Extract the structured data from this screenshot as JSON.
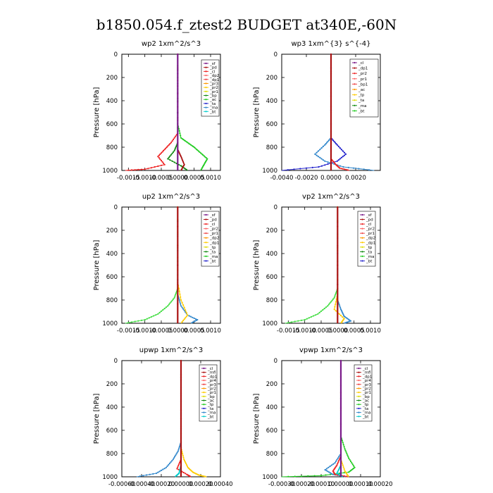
{
  "figure_title": "b1850.054.f_ztest2  BUDGET at340E,-60N",
  "chart_data": [
    {
      "type": "line",
      "title": "wp2   1xm^2/s^3",
      "ylabel": "Pressure [hPa]",
      "xlim": [
        -0.0017,
        0.0013
      ],
      "ylim": [
        1000,
        0
      ],
      "xticks": [
        "-0.0015",
        "-0.0010",
        "-0.0005",
        "0.0000",
        "0.0005",
        "0.0010"
      ],
      "xtick_values": [
        -0.0015,
        -0.001,
        -0.0005,
        0,
        0.0005,
        0.001
      ],
      "yticks": [
        "0",
        "200",
        "400",
        "600",
        "800",
        "1000"
      ],
      "legend": [
        "_sf",
        "_pd",
        "_cl",
        "_dp2",
        "_dp1",
        "_pr3",
        "_pr2",
        "_pr1",
        "_bp",
        "_ac",
        "_ta",
        "_ma",
        "_bt"
      ],
      "series": [
        {
          "name": "_ac",
          "color": "#22cc22",
          "x": [
            0,
            0,
            0.0001,
            0.0003,
            0.0005,
            0.0007,
            0.0009,
            0.0008,
            0.0007
          ],
          "y": [
            0,
            600,
            720,
            760,
            800,
            850,
            900,
            950,
            1000
          ]
        },
        {
          "name": "_dp1",
          "color": "#ee2222",
          "x": [
            0,
            0,
            -0.0002,
            -0.0004,
            -0.0006,
            -0.0004,
            -0.001,
            -0.0016
          ],
          "y": [
            0,
            680,
            760,
            820,
            880,
            950,
            990,
            1000
          ]
        },
        {
          "name": "_bp",
          "color": "#118811",
          "x": [
            0,
            0,
            -0.0001,
            -0.0003,
            0.0001,
            0.0003
          ],
          "y": [
            0,
            760,
            830,
            900,
            960,
            1000
          ]
        },
        {
          "name": "_dp2",
          "color": "#aa1111",
          "x": [
            0,
            0,
            0.0001,
            0.0002,
            0.0001
          ],
          "y": [
            0,
            820,
            880,
            950,
            1000
          ]
        },
        {
          "name": "_pd",
          "color": "#7a1a8a",
          "x": [
            0,
            0
          ],
          "y": [
            0,
            1000
          ]
        }
      ]
    },
    {
      "type": "line",
      "title": "wp3   1xm^{3} s^{-4}",
      "ylabel": "Pressure [hPa]",
      "xlim": [
        -0.004,
        0.004
      ],
      "ylim": [
        1000,
        0
      ],
      "xticks": [
        "-0.0040",
        "-0.0020",
        "0.0000",
        "0.0020"
      ],
      "xtick_values": [
        -0.004,
        -0.002,
        0,
        0.002
      ],
      "yticks": [
        "0",
        "200",
        "400",
        "600",
        "800",
        "1000"
      ],
      "legend": [
        "_cl",
        "_dp1",
        "_pr2",
        "_pr1",
        "_bp1",
        "_ac",
        "_tp",
        "_ta",
        "_ma",
        "_bt"
      ],
      "series": [
        {
          "name": "_tp",
          "color": "#2222cc",
          "x": [
            0,
            0,
            0.0005,
            0.0012,
            0.0005,
            -0.001,
            -0.004
          ],
          "y": [
            0,
            720,
            780,
            860,
            920,
            970,
            1000
          ]
        },
        {
          "name": "_ta",
          "color": "#3388cc",
          "x": [
            0,
            0,
            -0.0005,
            -0.0013,
            -0.0005,
            0.001,
            0.0035
          ],
          "y": [
            0,
            720,
            780,
            860,
            920,
            970,
            1000
          ]
        },
        {
          "name": "_dp1",
          "color": "#ee2222",
          "x": [
            0,
            0,
            0.0004,
            0.0007,
            0.0015
          ],
          "y": [
            0,
            900,
            950,
            980,
            1000
          ]
        },
        {
          "name": "_cl",
          "color": "#aa1111",
          "x": [
            0,
            0
          ],
          "y": [
            0,
            1000
          ]
        }
      ]
    },
    {
      "type": "line",
      "title": "up2   1xm^2/s^3",
      "ylabel": "Pressure [hPa]",
      "xlim": [
        -0.0017,
        0.0013
      ],
      "ylim": [
        1000,
        0
      ],
      "xticks": [
        "-0.0015",
        "-0.0010",
        "-0.0005",
        "0.0000",
        "0.0005",
        "0.0010"
      ],
      "xtick_values": [
        -0.0015,
        -0.001,
        -0.0005,
        0,
        0.0005,
        0.001
      ],
      "yticks": [
        "0",
        "200",
        "400",
        "600",
        "800",
        "1000"
      ],
      "legend": [
        "_sf",
        "_pd",
        "_cl",
        "_pr2",
        "_pr1",
        "_dp2",
        "_dp1",
        "_tp",
        "_ta",
        "_ma",
        "_bt"
      ],
      "series": [
        {
          "name": "_dp1",
          "color": "#44dd44",
          "x": [
            0,
            0,
            -0.0001,
            -0.0003,
            -0.0006,
            -0.001,
            -0.0016
          ],
          "y": [
            0,
            700,
            780,
            850,
            920,
            970,
            1000
          ]
        },
        {
          "name": "_tp",
          "color": "#3388cc",
          "x": [
            0,
            0,
            0.0001,
            0.0003,
            0.0006,
            0.0004
          ],
          "y": [
            0,
            750,
            850,
            930,
            970,
            1000
          ]
        },
        {
          "name": "_pr1",
          "color": "#ffcc00",
          "x": [
            0,
            0,
            0.0001,
            0.0003,
            0.0001
          ],
          "y": [
            0,
            650,
            800,
            930,
            1000
          ]
        },
        {
          "name": "_cl",
          "color": "#aa1111",
          "x": [
            0,
            0
          ],
          "y": [
            0,
            1000
          ]
        }
      ]
    },
    {
      "type": "line",
      "title": "vp2   1xm^2/s^3",
      "ylabel": "Pressure [hPa]",
      "xlim": [
        -0.0017,
        0.0013
      ],
      "ylim": [
        1000,
        0
      ],
      "xticks": [
        "-0.0015",
        "-0.0010",
        "-0.0005",
        "0.0000",
        "0.0005",
        "0.0010"
      ],
      "xtick_values": [
        -0.0015,
        -0.001,
        -0.0005,
        0,
        0.0005,
        0.001
      ],
      "yticks": [
        "0",
        "200",
        "400",
        "600",
        "800",
        "1000"
      ],
      "legend": [
        "_sf",
        "_pd",
        "_cl",
        "_pr2",
        "_pr1",
        "_dp2",
        "_dp1",
        "_tp",
        "_ta",
        "_ma",
        "_bt"
      ],
      "series": [
        {
          "name": "_dp1",
          "color": "#44dd44",
          "x": [
            0,
            0,
            -0.0001,
            -0.0003,
            -0.0006,
            -0.001,
            -0.0016
          ],
          "y": [
            0,
            700,
            780,
            850,
            920,
            970,
            1000
          ]
        },
        {
          "name": "_tp",
          "color": "#3388cc",
          "x": [
            0,
            0,
            0.0001,
            0.0002,
            0.0004,
            0.0002
          ],
          "y": [
            0,
            800,
            880,
            940,
            980,
            1000
          ]
        },
        {
          "name": "_pr1",
          "color": "#ffcc00",
          "x": [
            0,
            0,
            -0.0001,
            0.0002,
            0.0001
          ],
          "y": [
            0,
            750,
            880,
            960,
            1000
          ]
        },
        {
          "name": "_cl",
          "color": "#aa1111",
          "x": [
            0,
            0
          ],
          "y": [
            0,
            1000
          ]
        }
      ]
    },
    {
      "type": "line",
      "title": "upwp   1xm^2/s^3",
      "ylabel": "Pressure [hPa]",
      "xlim": [
        -0.0006,
        0.0004
      ],
      "ylim": [
        1000,
        0
      ],
      "xticks": [
        "-0.00060",
        "-0.00040",
        "-0.00020",
        "0.00000",
        "0.00020",
        "0.00040"
      ],
      "xtick_values": [
        -0.0006,
        -0.0004,
        -0.0002,
        0,
        0.0002,
        0.0004
      ],
      "yticks": [
        "0",
        "200",
        "400",
        "600",
        "800",
        "1000"
      ],
      "legend": [
        "_cl",
        "_mfl",
        "_dp1",
        "_pr4",
        "_pr3",
        "_pr2",
        "_pr1",
        "_bp",
        "_ac",
        "_tp",
        "_ta",
        "_ma",
        "_bt"
      ],
      "series": [
        {
          "name": "_tp",
          "color": "#3388cc",
          "x": [
            0,
            0,
            -3e-05,
            -8e-05,
            -0.00015,
            -0.00025,
            -0.00045
          ],
          "y": [
            0,
            700,
            780,
            850,
            920,
            970,
            1000
          ]
        },
        {
          "name": "_pr1",
          "color": "#ffcc00",
          "x": [
            0,
            0,
            3e-05,
            7e-05,
            0.00012,
            0.00018,
            0.00026
          ],
          "y": [
            0,
            750,
            850,
            920,
            960,
            985,
            1000
          ]
        },
        {
          "name": "_dp1",
          "color": "#ee2222",
          "x": [
            0,
            0,
            -4e-05,
            6e-05,
            0.0001
          ],
          "y": [
            0,
            850,
            930,
            980,
            1000
          ]
        },
        {
          "name": "_bt",
          "color": "#00cccc",
          "x": [
            0,
            0,
            -2e-05,
            -6e-05
          ],
          "y": [
            0,
            900,
            970,
            1000
          ]
        },
        {
          "name": "_cl",
          "color": "#aa1111",
          "x": [
            0,
            0
          ],
          "y": [
            0,
            1000
          ]
        }
      ]
    },
    {
      "type": "line",
      "title": "vpwp   1xm^2/s^3",
      "ylabel": "Pressure [hPa]",
      "xlim": [
        -0.0003,
        0.0002
      ],
      "ylim": [
        1000,
        0
      ],
      "xticks": [
        "-0.00030",
        "-0.00020",
        "-0.00010",
        "0.00000",
        "0.00010",
        "0.00020"
      ],
      "xtick_values": [
        -0.0003,
        -0.0002,
        -0.0001,
        0,
        0.0001,
        0.0002
      ],
      "yticks": [
        "0",
        "200",
        "400",
        "600",
        "800",
        "1000"
      ],
      "legend": [
        "_cl",
        "_mfl",
        "_dp1",
        "_pr4",
        "_pr3",
        "_pr2",
        "_pr1",
        "_bp",
        "_ac",
        "_tp",
        "_ta",
        "_ma",
        "_bt"
      ],
      "series": [
        {
          "name": "_ac",
          "color": "#22cc22",
          "x": [
            0,
            0,
            2e-05,
            4e-05,
            7e-05,
            4e-05,
            -0.0001,
            -0.0003
          ],
          "y": [
            0,
            650,
            760,
            840,
            920,
            960,
            990,
            1000
          ]
        },
        {
          "name": "_tp",
          "color": "#3388cc",
          "x": [
            0,
            0,
            -3e-05,
            -8e-05,
            -4e-05,
            3e-05
          ],
          "y": [
            0,
            800,
            880,
            940,
            980,
            1000
          ]
        },
        {
          "name": "_dp1",
          "color": "#ee2222",
          "x": [
            0,
            0,
            -2e-05,
            -4e-05,
            -3e-05,
            4e-05
          ],
          "y": [
            0,
            820,
            900,
            950,
            980,
            1000
          ]
        },
        {
          "name": "_pr1",
          "color": "#ffcc00",
          "x": [
            0,
            0,
            2e-05,
            4e-05
          ],
          "y": [
            0,
            850,
            950,
            1000
          ]
        },
        {
          "name": "_bt",
          "color": "#00cccc",
          "x": [
            0,
            0,
            -2e-05,
            1e-05
          ],
          "y": [
            0,
            900,
            970,
            1000
          ]
        },
        {
          "name": "_cl",
          "color": "#7a1a8a",
          "x": [
            0,
            0
          ],
          "y": [
            0,
            1000
          ]
        }
      ]
    }
  ]
}
